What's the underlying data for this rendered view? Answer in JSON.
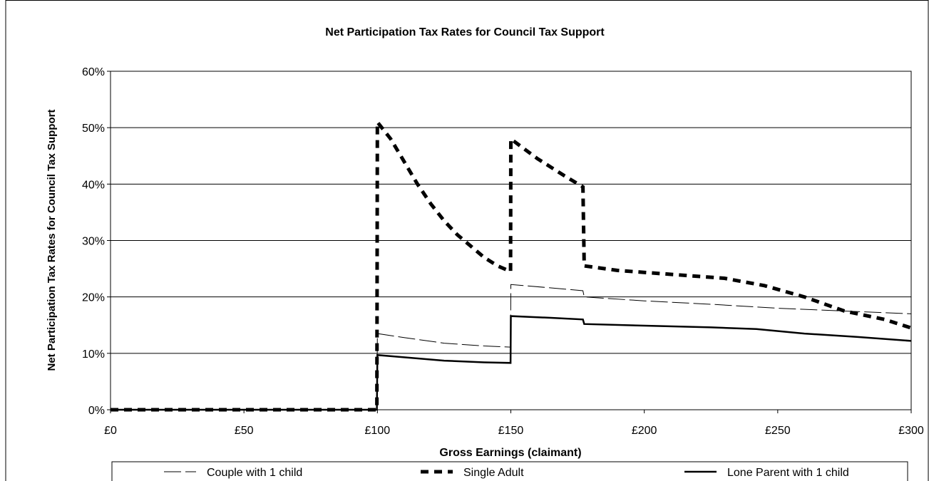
{
  "chart_data": {
    "type": "line",
    "title": "Net Participation Tax Rates for Council Tax Support",
    "xlabel": "Gross Earnings (claimant)",
    "ylabel": "Net Participation Tax Rates for Council Tax Support",
    "xlim": [
      0,
      300
    ],
    "ylim": [
      0,
      60
    ],
    "x_ticks": [
      0,
      50,
      100,
      150,
      200,
      250,
      300
    ],
    "x_tick_labels": [
      "£0",
      "£50",
      "£100",
      "£150",
      "£200",
      "£250",
      "£300"
    ],
    "y_ticks": [
      0,
      10,
      20,
      30,
      40,
      50,
      60
    ],
    "y_tick_labels": [
      "0%",
      "10%",
      "20%",
      "30%",
      "40%",
      "50%",
      "60%"
    ],
    "grid": "horizontal",
    "legend_position": "bottom",
    "series": [
      {
        "name": "Couple with 1 child",
        "style": "long-dash-thin",
        "color": "#000000",
        "points": [
          [
            0,
            0
          ],
          [
            99.8,
            0
          ],
          [
            100,
            13.5
          ],
          [
            110,
            12.8
          ],
          [
            125,
            11.8
          ],
          [
            140,
            11.3
          ],
          [
            149.9,
            11.1
          ],
          [
            150,
            22.2
          ],
          [
            165,
            21.6
          ],
          [
            177,
            21.1
          ],
          [
            177.5,
            20.0
          ],
          [
            200,
            19.3
          ],
          [
            225,
            18.7
          ],
          [
            250,
            18.0
          ],
          [
            275,
            17.5
          ],
          [
            300,
            17.0
          ]
        ]
      },
      {
        "name": "Single Adult",
        "style": "heavy-dash",
        "color": "#000000",
        "points": [
          [
            0,
            0
          ],
          [
            99.8,
            0
          ],
          [
            100,
            51
          ],
          [
            105,
            48
          ],
          [
            110,
            44
          ],
          [
            115,
            40
          ],
          [
            120,
            36.5
          ],
          [
            125,
            33.5
          ],
          [
            130,
            31
          ],
          [
            135,
            29
          ],
          [
            140,
            27
          ],
          [
            145,
            25.5
          ],
          [
            149.9,
            24.5
          ],
          [
            150,
            48
          ],
          [
            160,
            44.5
          ],
          [
            170,
            41.5
          ],
          [
            177,
            39.5
          ],
          [
            177.5,
            25.5
          ],
          [
            190,
            24.7
          ],
          [
            210,
            24.0
          ],
          [
            230,
            23.3
          ],
          [
            245,
            22.0
          ],
          [
            260,
            20.0
          ],
          [
            275,
            17.5
          ],
          [
            290,
            16.0
          ],
          [
            300,
            14.5
          ]
        ]
      },
      {
        "name": "Lone Parent with 1 child",
        "style": "solid-thick",
        "color": "#000000",
        "points": [
          [
            0,
            0
          ],
          [
            99.8,
            0
          ],
          [
            100,
            9.7
          ],
          [
            110,
            9.3
          ],
          [
            125,
            8.7
          ],
          [
            140,
            8.4
          ],
          [
            149.9,
            8.3
          ],
          [
            150,
            16.6
          ],
          [
            165,
            16.3
          ],
          [
            177,
            16.0
          ],
          [
            177.5,
            15.2
          ],
          [
            200,
            14.9
          ],
          [
            225,
            14.6
          ],
          [
            242,
            14.3
          ],
          [
            260,
            13.5
          ],
          [
            280,
            12.9
          ],
          [
            300,
            12.2
          ]
        ]
      }
    ]
  }
}
